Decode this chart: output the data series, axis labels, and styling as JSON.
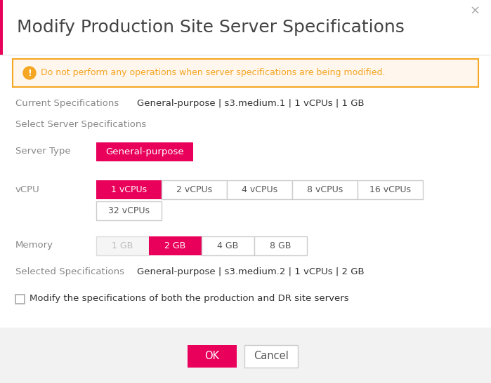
{
  "title": "Modify Production Site Server Specifications",
  "title_fontsize": 18,
  "title_color": "#444444",
  "bg_color": "#ffffff",
  "footer_bg_color": "#f2f2f2",
  "accent_bar_color": "#e8005a",
  "close_x": "×",
  "warning_text": "Do not perform any operations when server specifications are being modified.",
  "warning_bg": "#fff6ee",
  "warning_border": "#f5a623",
  "warning_icon_color": "#f5a623",
  "current_specs_label": "Current Specifications",
  "current_specs_value": "General-purpose | s3.medium.1 | 1 vCPUs | 1 GB",
  "select_label": "Select Server Specifications",
  "server_type_label": "Server Type",
  "server_type_btn": "General-purpose",
  "vcpu_label": "vCPU",
  "vcpu_options": [
    "1 vCPUs",
    "2 vCPUs",
    "4 vCPUs",
    "8 vCPUs",
    "16 vCPUs",
    "32 vCPUs"
  ],
  "vcpu_selected": 0,
  "memory_label": "Memory",
  "memory_options": [
    "1 GB",
    "2 GB",
    "4 GB",
    "8 GB"
  ],
  "memory_selected": 1,
  "memory_disabled": [
    0
  ],
  "selected_specs_label": "Selected Specifications",
  "selected_specs_value": "General-purpose | s3.medium.2 | 1 vCPUs | 2 GB",
  "checkbox_label": "Modify the specifications of both the production and DR site servers",
  "ok_btn": "OK",
  "cancel_btn": "Cancel",
  "active_btn_color": "#e8005a",
  "active_btn_text_color": "#ffffff",
  "inactive_btn_color": "#ffffff",
  "inactive_btn_border": "#cccccc",
  "inactive_btn_text_color": "#555555",
  "disabled_btn_color": "#f5f5f5",
  "disabled_btn_text_color": "#bbbbbb",
  "disabled_btn_border": "#dddddd",
  "label_color": "#888888",
  "value_color": "#333333",
  "divider_color": "#e0e0e0",
  "border_color": "#dddddd"
}
